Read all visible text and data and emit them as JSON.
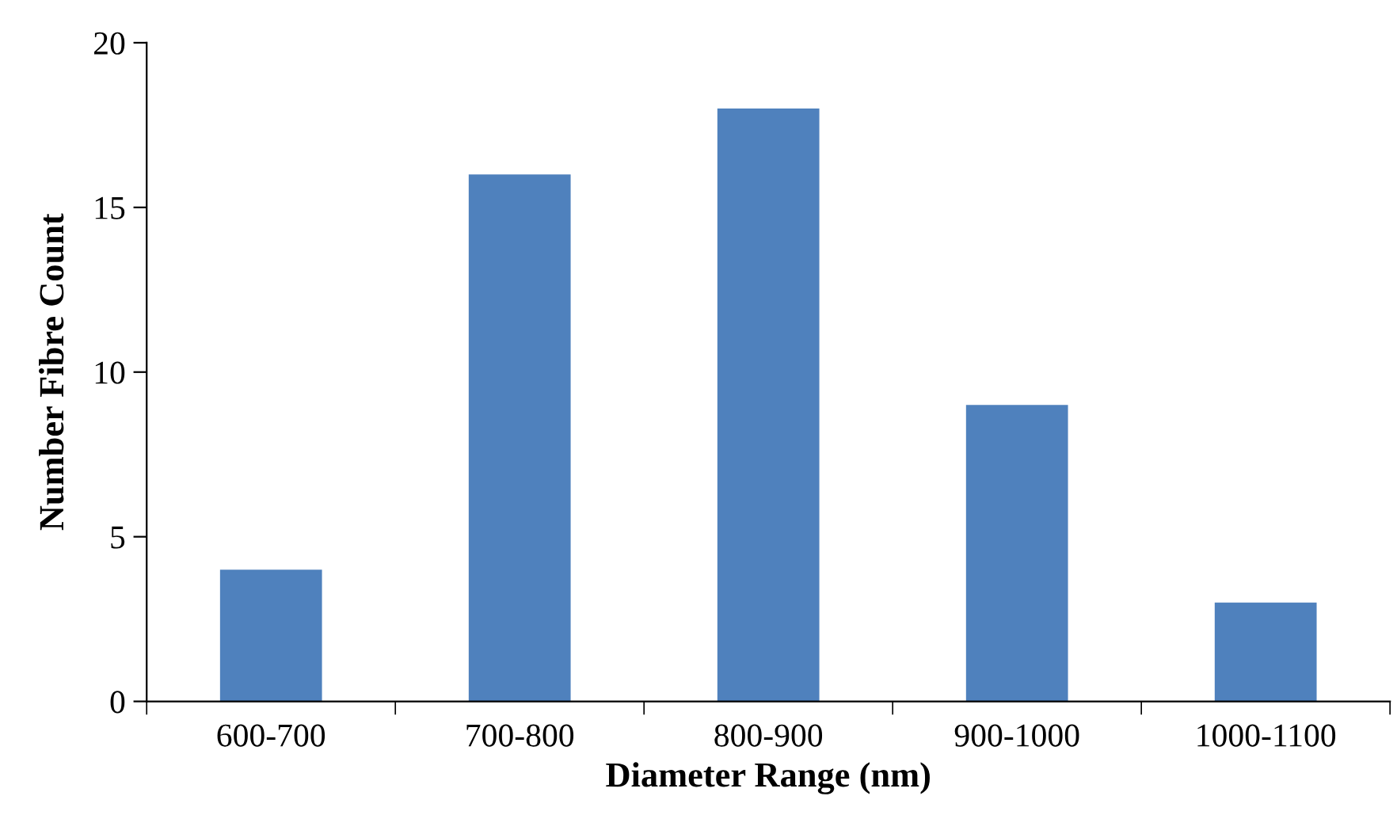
{
  "chart_data": {
    "type": "bar",
    "xlabel": "Diameter Range (nm)",
    "ylabel": "Number Fibre Count",
    "categories": [
      "600-700",
      "700-800",
      "800-900",
      "900-1000",
      "1000-1100"
    ],
    "values": [
      4,
      16,
      18,
      9,
      3
    ],
    "color": "#4f81bd",
    "ylim": [
      0,
      20
    ],
    "yticks": [
      0,
      5,
      10,
      15,
      20
    ],
    "grid": false,
    "legend": false
  }
}
